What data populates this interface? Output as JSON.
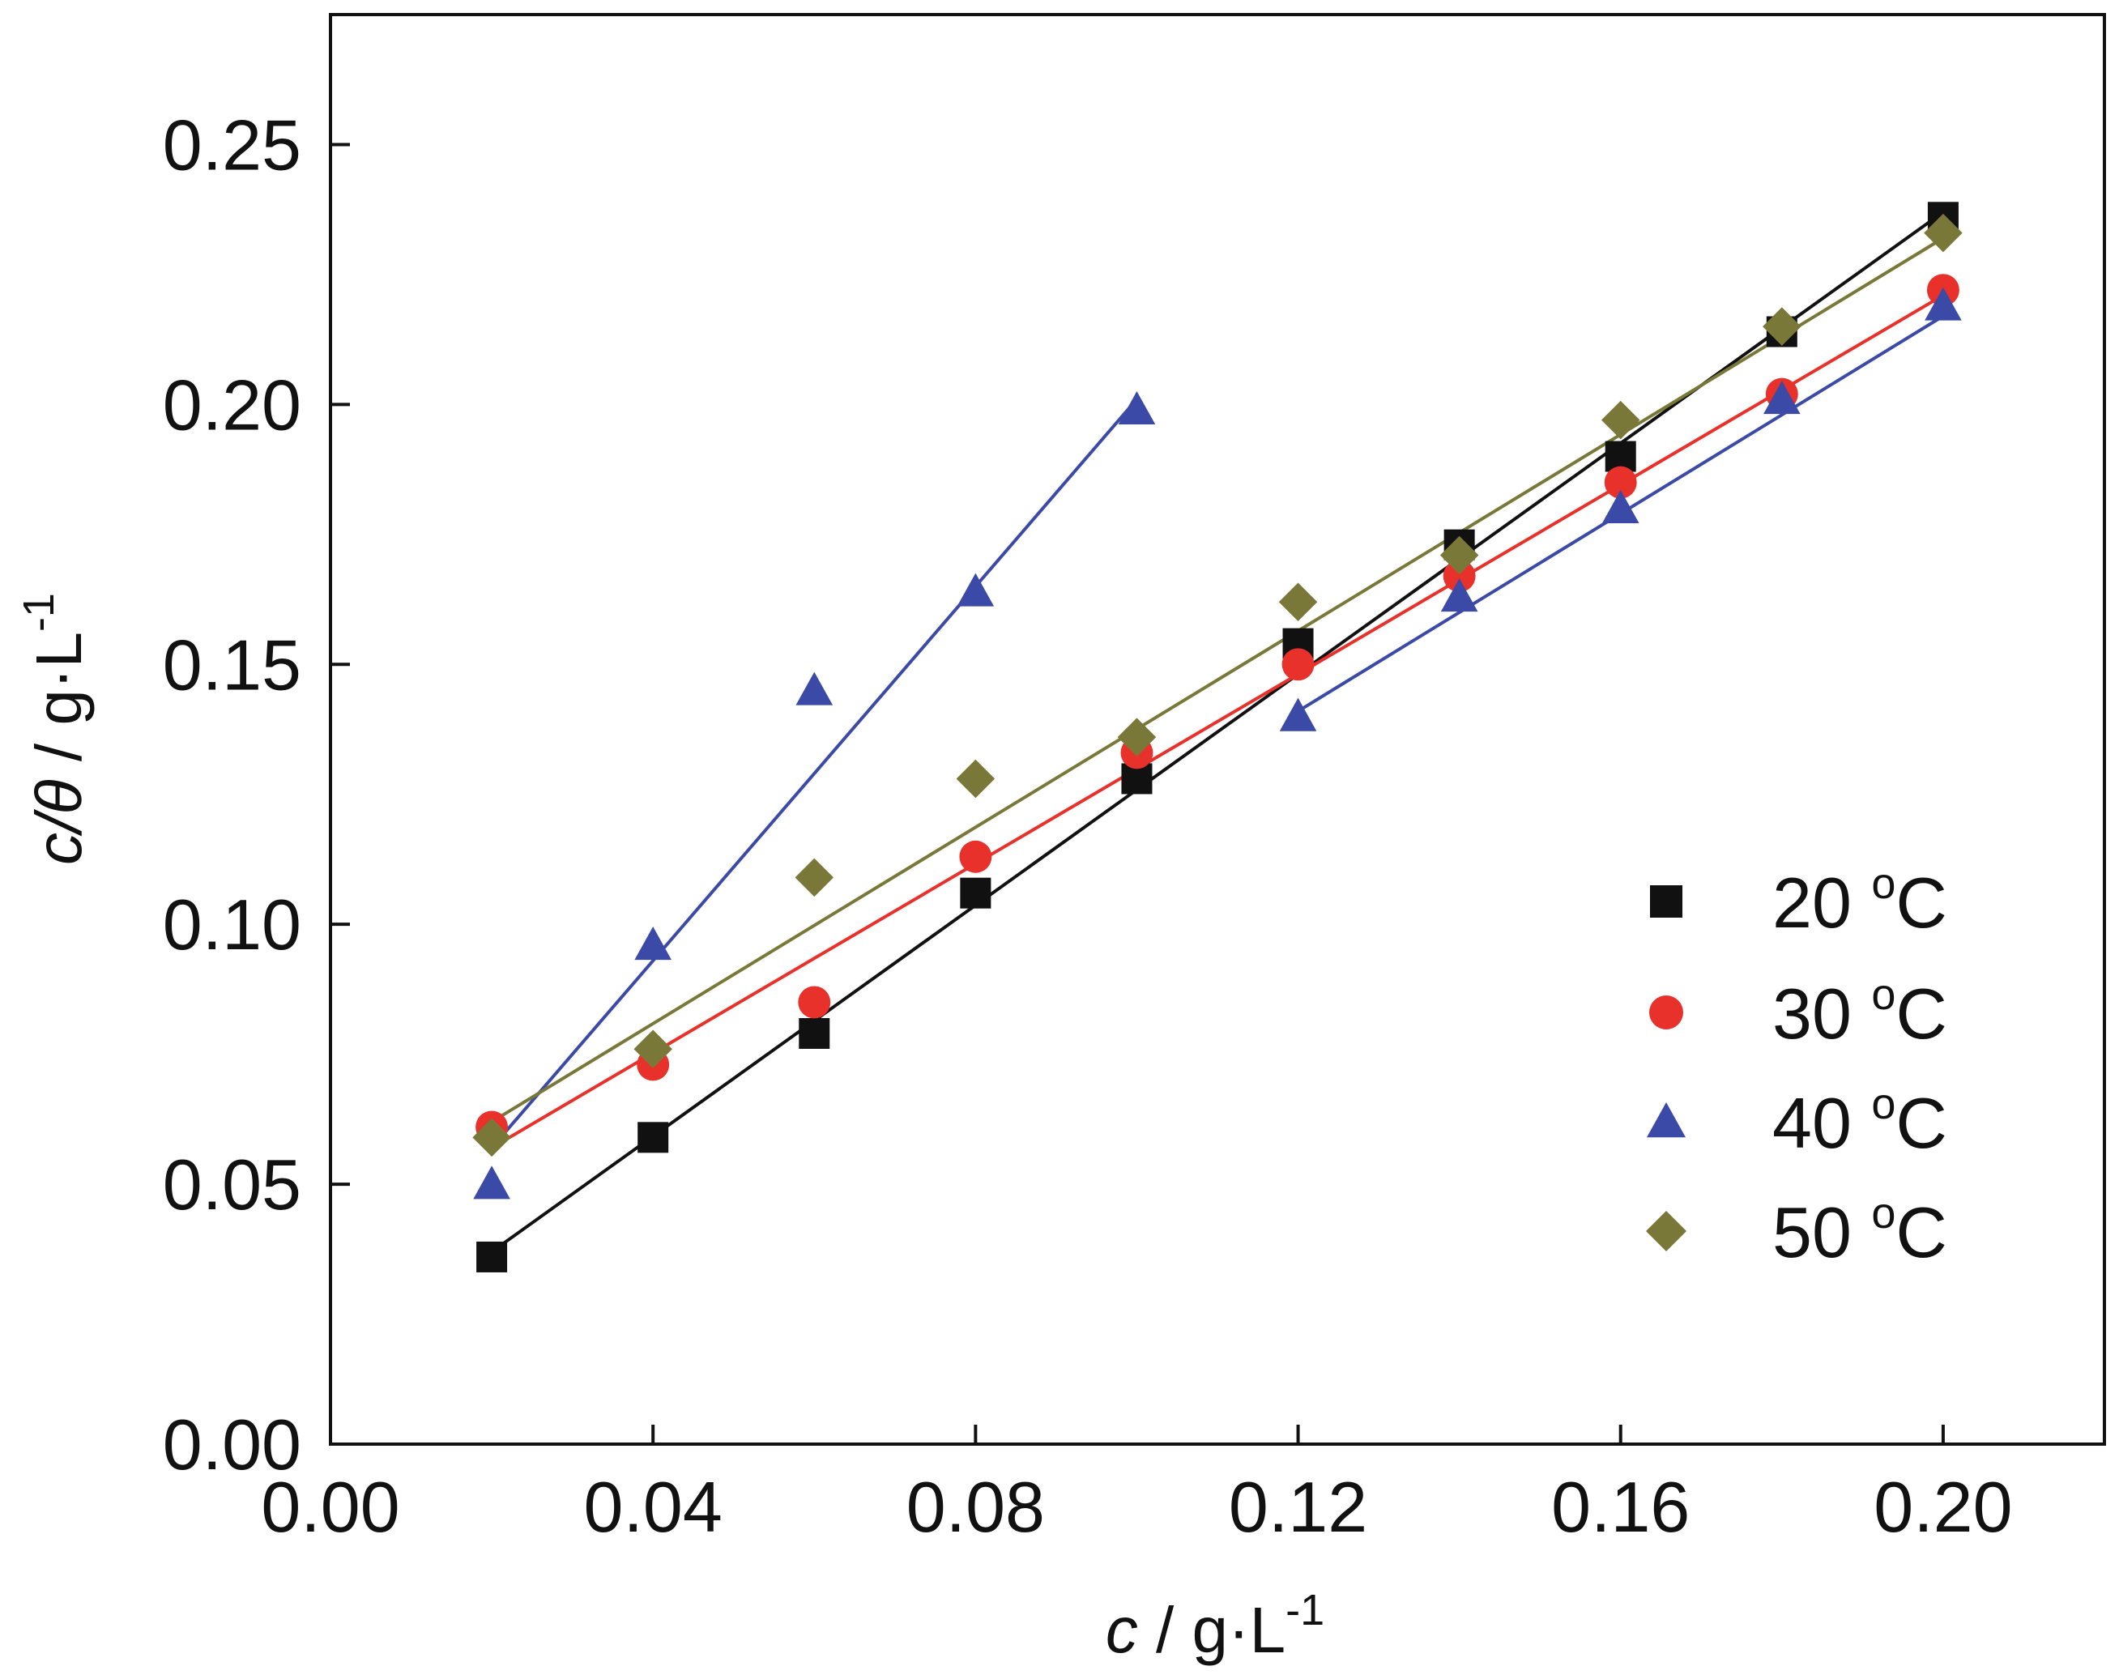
{
  "chart_data": {
    "type": "scatter",
    "title": "",
    "xlabel": {
      "italic": "c",
      "unit_main": " / g·L",
      "unit_sup": "-1"
    },
    "ylabel": {
      "italic": "c/θ",
      "unit_main": " / g·L",
      "unit_sup": "-1"
    },
    "xlim": [
      0.0,
      0.22
    ],
    "ylim": [
      0.0,
      0.275
    ],
    "x_ticks": [
      0.0,
      0.04,
      0.08,
      0.12,
      0.16,
      0.2
    ],
    "x_tick_labels": [
      "0.00",
      "0.04",
      "0.08",
      "0.12",
      "0.16",
      "0.20"
    ],
    "y_ticks": [
      0.0,
      0.05,
      0.1,
      0.15,
      0.2,
      0.25
    ],
    "y_tick_labels": [
      "0.00",
      "0.05",
      "0.10",
      "0.15",
      "0.20",
      "0.25"
    ],
    "grid": false,
    "legend_position": "lower-right",
    "series": [
      {
        "name": "20 ºC",
        "label_main": "20 ",
        "label_sup": "o",
        "label_unit": "C",
        "marker": "square",
        "color": "#111111",
        "points": [
          [
            0.02,
            0.036
          ],
          [
            0.04,
            0.059
          ],
          [
            0.06,
            0.079
          ],
          [
            0.08,
            0.106
          ],
          [
            0.1,
            0.128
          ],
          [
            0.12,
            0.154
          ],
          [
            0.14,
            0.173
          ],
          [
            0.16,
            0.19
          ],
          [
            0.18,
            0.214
          ],
          [
            0.2,
            0.236
          ]
        ],
        "fits": [
          {
            "x": [
              0.02,
              0.2
            ],
            "y": [
              0.037,
              0.237
            ]
          }
        ]
      },
      {
        "name": "30 ºC",
        "label_main": "30 ",
        "label_sup": "o",
        "label_unit": "C",
        "marker": "circle",
        "color": "#e8312a",
        "points": [
          [
            0.02,
            0.061
          ],
          [
            0.04,
            0.073
          ],
          [
            0.06,
            0.085
          ],
          [
            0.08,
            0.113
          ],
          [
            0.1,
            0.133
          ],
          [
            0.12,
            0.15
          ],
          [
            0.14,
            0.167
          ],
          [
            0.16,
            0.185
          ],
          [
            0.18,
            0.202
          ],
          [
            0.2,
            0.222
          ]
        ],
        "fits": [
          {
            "x": [
              0.02,
              0.2
            ],
            "y": [
              0.057,
              0.221
            ]
          }
        ]
      },
      {
        "name": "40 ºC",
        "label_main": "40 ",
        "label_sup": "o",
        "label_unit": "C",
        "marker": "triangle",
        "color": "#3a4aa6",
        "points": [
          [
            0.02,
            0.05
          ],
          [
            0.04,
            0.096
          ],
          [
            0.06,
            0.145
          ],
          [
            0.08,
            0.164
          ],
          [
            0.1,
            0.199
          ],
          [
            0.12,
            0.14
          ],
          [
            0.14,
            0.163
          ],
          [
            0.16,
            0.18
          ],
          [
            0.18,
            0.201
          ],
          [
            0.2,
            0.219
          ]
        ],
        "fits": [
          {
            "x": [
              0.02,
              0.1
            ],
            "y": [
              0.057,
              0.201
            ]
          },
          {
            "x": [
              0.12,
              0.2
            ],
            "y": [
              0.141,
              0.217
            ]
          }
        ]
      },
      {
        "name": "50 ºC",
        "label_main": "50 ",
        "label_sup": "o",
        "label_unit": "C",
        "marker": "diamond",
        "color": "#7a7838",
        "points": [
          [
            0.02,
            0.059
          ],
          [
            0.04,
            0.076
          ],
          [
            0.06,
            0.109
          ],
          [
            0.08,
            0.128
          ],
          [
            0.1,
            0.136
          ],
          [
            0.12,
            0.162
          ],
          [
            0.14,
            0.171
          ],
          [
            0.16,
            0.197
          ],
          [
            0.18,
            0.215
          ],
          [
            0.2,
            0.233
          ]
        ],
        "fits": [
          {
            "x": [
              0.02,
              0.2
            ],
            "y": [
              0.062,
              0.232
            ]
          }
        ]
      }
    ]
  }
}
